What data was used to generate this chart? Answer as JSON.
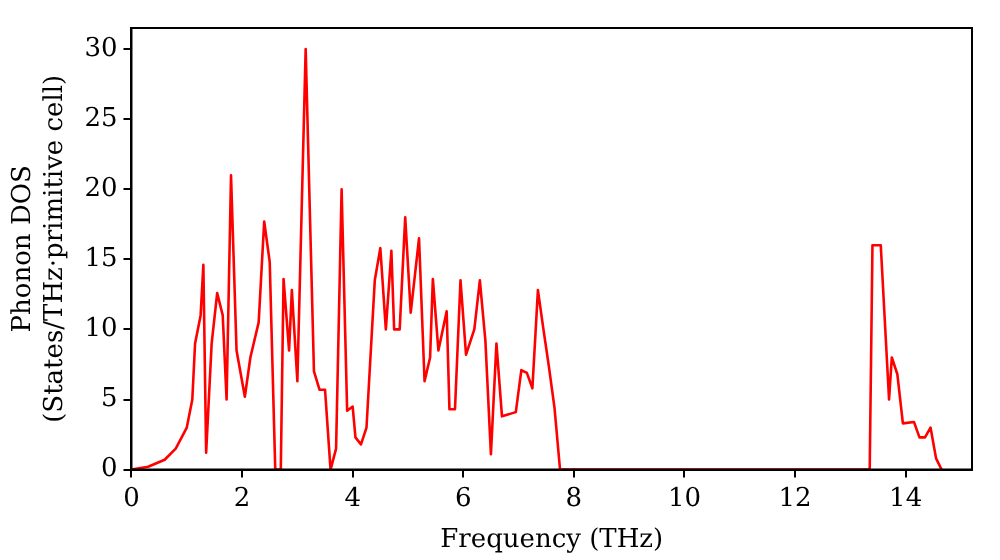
{
  "chart_data": {
    "type": "line",
    "xlabel": "Frequency (THz)",
    "ylabel": "Phonon DOS\n(States/THz·primitive cell)",
    "xlim": [
      0,
      15.2
    ],
    "ylim": [
      0,
      31.5
    ],
    "xticks": [
      0,
      2,
      4,
      6,
      8,
      10,
      12,
      14
    ],
    "yticks": [
      0,
      5,
      10,
      15,
      20,
      25,
      30
    ],
    "grid": false,
    "legend": false,
    "marker": "none",
    "line_style": "solid",
    "series": [
      {
        "color": "#ff0000",
        "x": [
          0,
          0.3,
          0.6,
          0.8,
          1.0,
          1.1,
          1.15,
          1.25,
          1.3,
          1.35,
          1.45,
          1.55,
          1.65,
          1.72,
          1.8,
          1.9,
          2.05,
          2.15,
          2.3,
          2.4,
          2.5,
          2.6,
          2.7,
          2.75,
          2.85,
          2.9,
          3.0,
          3.15,
          3.3,
          3.4,
          3.5,
          3.6,
          3.7,
          3.8,
          3.9,
          4.0,
          4.05,
          4.15,
          4.25,
          4.4,
          4.5,
          4.6,
          4.7,
          4.75,
          4.85,
          4.95,
          5.05,
          5.2,
          5.3,
          5.4,
          5.45,
          5.55,
          5.7,
          5.75,
          5.85,
          5.95,
          6.05,
          6.2,
          6.3,
          6.4,
          6.5,
          6.6,
          6.7,
          6.95,
          7.05,
          7.15,
          7.25,
          7.35,
          7.45,
          7.55,
          7.65,
          7.75,
          13.35,
          13.4,
          13.55,
          13.7,
          13.75,
          13.85,
          13.95,
          14.15,
          14.25,
          14.35,
          14.45,
          14.55,
          14.65
        ],
        "values": [
          0,
          0.2,
          0.7,
          1.5,
          3,
          5,
          9,
          11,
          14.6,
          1.2,
          9,
          12.6,
          11,
          5,
          21,
          8.5,
          5.2,
          8,
          10.5,
          17.7,
          14.8,
          0,
          0,
          13.6,
          8.5,
          12.8,
          6.3,
          30,
          7,
          5.7,
          5.7,
          0,
          1.5,
          20,
          4.2,
          4.5,
          2.3,
          1.8,
          3,
          13.5,
          15.8,
          10,
          15.6,
          10,
          10,
          18,
          11.2,
          16.5,
          6.3,
          8,
          13.6,
          8.5,
          11.3,
          4.3,
          4.3,
          13.5,
          8.2,
          10,
          13.5,
          9.2,
          1.1,
          9,
          3.8,
          4.1,
          7.1,
          6.9,
          5.8,
          12.8,
          10,
          7.3,
          4.4,
          0,
          0,
          16,
          16,
          5,
          8,
          6.8,
          3.3,
          3.4,
          2.3,
          2.3,
          3,
          0.8,
          0
        ]
      }
    ]
  }
}
